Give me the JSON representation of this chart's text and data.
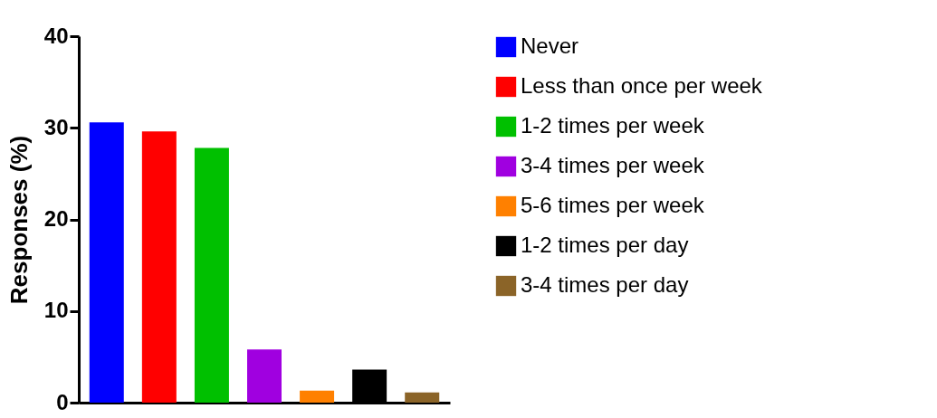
{
  "chart_data": {
    "type": "bar",
    "ylabel": "Responses (%)",
    "categories": [
      null,
      null,
      null,
      null,
      null,
      null,
      null
    ],
    "series": [
      {
        "name": "Never",
        "color": "#0000ff",
        "values": [
          30.6,
          null,
          null,
          null,
          null,
          null,
          null
        ]
      },
      {
        "name": "Less than once per week",
        "color": "#ff0000",
        "values": [
          null,
          29.6,
          null,
          null,
          null,
          null,
          null
        ]
      },
      {
        "name": "1-2 times per week",
        "color": "#00c000",
        "values": [
          null,
          null,
          27.8,
          null,
          null,
          null,
          null
        ]
      },
      {
        "name": "3-4 times per week",
        "color": "#a000e0",
        "values": [
          null,
          null,
          null,
          5.8,
          null,
          null,
          null
        ]
      },
      {
        "name": "5-6 times per week",
        "color": "#ff8000",
        "values": [
          null,
          null,
          null,
          null,
          1.3,
          null,
          null
        ]
      },
      {
        "name": "1-2 times per day",
        "color": "#000000",
        "values": [
          null,
          null,
          null,
          null,
          null,
          3.6,
          null
        ]
      },
      {
        "name": "3-4 times per day",
        "color": "#8b6428",
        "values": [
          null,
          null,
          null,
          null,
          null,
          null,
          1.1
        ]
      }
    ],
    "ylim": [
      0,
      40
    ],
    "yticks": [
      0,
      10,
      20,
      30,
      40
    ],
    "grid": false,
    "legend": "right"
  }
}
